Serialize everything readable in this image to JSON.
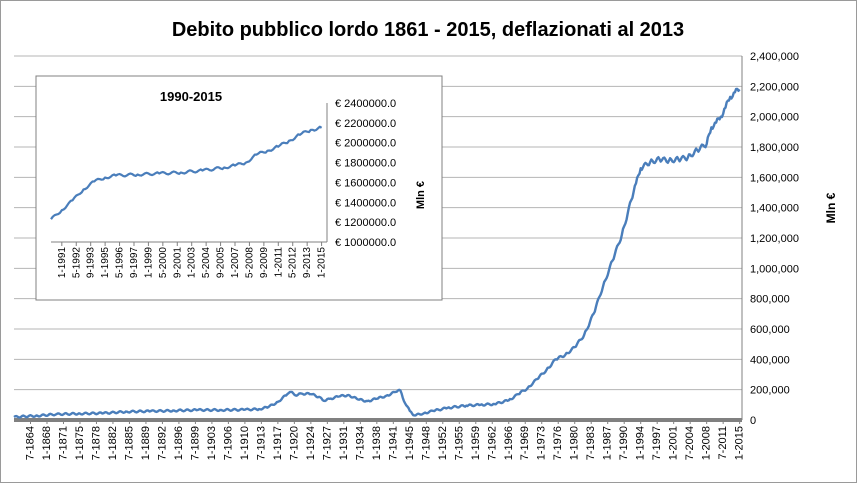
{
  "chart_data": [
    {
      "type": "line",
      "title": "Debito pubblico lordo 1861 - 2015, deflazionati al 2013",
      "xlabel": "",
      "ylabel": "Mln €",
      "y_axis_position": "right",
      "ylim": [
        0,
        2400000
      ],
      "y_ticks": [
        "0",
        "200,000",
        "400,000",
        "600,000",
        "800,000",
        "1,000,000",
        "1,200,000",
        "1,400,000",
        "1,600,000",
        "1,800,000",
        "2,000,000",
        "2,200,000",
        "2,400,000"
      ],
      "x_ticks": [
        "7-1864",
        "1-1868",
        "7-1871",
        "1-1875",
        "7-1878",
        "1-1882",
        "7-1885",
        "1-1889",
        "7-1892",
        "1-1896",
        "7-1899",
        "1-1903",
        "7-1906",
        "1-1910",
        "7-1913",
        "1-1917",
        "7-1920",
        "1-1924",
        "7-1927",
        "1-1931",
        "7-1934",
        "1-1938",
        "7-1941",
        "1-1945",
        "7-1948",
        "1-1952",
        "7-1955",
        "1-1959",
        "7-1962",
        "1-1966",
        "7-1969",
        "1-1973",
        "7-1976",
        "1-1980",
        "7-1983",
        "1-1987",
        "7-1990",
        "1-1994",
        "7-1997",
        "1-2001",
        "7-2004",
        "1-2008",
        "7-2011",
        "1-2015"
      ],
      "xlim": [
        1861,
        2015.5
      ],
      "grid": true,
      "series": [
        {
          "color": "#4a7ebb",
          "points": [
            [
              1861,
              20000
            ],
            [
              1866,
              28000
            ],
            [
              1870,
              38000
            ],
            [
              1875,
              42000
            ],
            [
              1880,
              45000
            ],
            [
              1885,
              55000
            ],
            [
              1890,
              58000
            ],
            [
              1895,
              62000
            ],
            [
              1900,
              66000
            ],
            [
              1905,
              66000
            ],
            [
              1910,
              68000
            ],
            [
              1913,
              72000
            ],
            [
              1915,
              85000
            ],
            [
              1917,
              120000
            ],
            [
              1919,
              170000
            ],
            [
              1920,
              185000
            ],
            [
              1921,
              160000
            ],
            [
              1922,
              175000
            ],
            [
              1924,
              170000
            ],
            [
              1926,
              150000
            ],
            [
              1927,
              125000
            ],
            [
              1928,
              140000
            ],
            [
              1930,
              155000
            ],
            [
              1932,
              165000
            ],
            [
              1934,
              135000
            ],
            [
              1936,
              125000
            ],
            [
              1938,
              140000
            ],
            [
              1940,
              160000
            ],
            [
              1942,
              185000
            ],
            [
              1943,
              195000
            ],
            [
              1944,
              110000
            ],
            [
              1945,
              60000
            ],
            [
              1946,
              30000
            ],
            [
              1948,
              45000
            ],
            [
              1950,
              60000
            ],
            [
              1953,
              80000
            ],
            [
              1957,
              95000
            ],
            [
              1960,
              100000
            ],
            [
              1963,
              105000
            ],
            [
              1966,
              130000
            ],
            [
              1968,
              170000
            ],
            [
              1970,
              210000
            ],
            [
              1972,
              270000
            ],
            [
              1974,
              330000
            ],
            [
              1976,
              400000
            ],
            [
              1978,
              430000
            ],
            [
              1980,
              480000
            ],
            [
              1982,
              560000
            ],
            [
              1984,
              700000
            ],
            [
              1986,
              880000
            ],
            [
              1988,
              1050000
            ],
            [
              1990,
              1220000
            ],
            [
              1992,
              1450000
            ],
            [
              1993,
              1560000
            ],
            [
              1994,
              1660000
            ],
            [
              1996,
              1700000
            ],
            [
              1998,
              1720000
            ],
            [
              2000,
              1710000
            ],
            [
              2002,
              1720000
            ],
            [
              2004,
              1730000
            ],
            [
              2006,
              1780000
            ],
            [
              2008,
              1820000
            ],
            [
              2009,
              1930000
            ],
            [
              2010,
              1960000
            ],
            [
              2011,
              2000000
            ],
            [
              2012,
              2060000
            ],
            [
              2013,
              2130000
            ],
            [
              2014,
              2160000
            ],
            [
              2015,
              2180000
            ]
          ]
        }
      ]
    },
    {
      "type": "line",
      "title": "1990-2015",
      "xlabel": "",
      "ylabel": "Mln €",
      "y_axis_position": "right",
      "ylim": [
        1000000,
        2400000
      ],
      "y_ticks": [
        "€ 1000000.0",
        "€ 1200000.0",
        "€ 1400000.0",
        "€ 1600000.0",
        "€ 1800000.0",
        "€ 2000000.0",
        "€ 2200000.0",
        "€ 2400000.0"
      ],
      "x_ticks": [
        "1-1991",
        "5-1992",
        "9-1993",
        "1-1995",
        "5-1996",
        "9-1997",
        "1-1999",
        "5-2000",
        "9-2001",
        "1-2003",
        "5-2004",
        "9-2005",
        "1-2007",
        "5-2008",
        "9-2009",
        "1-2011",
        "5-2012",
        "9-2013",
        "1-2015"
      ],
      "xlim": [
        1990,
        2015.5
      ],
      "grid": false,
      "series": [
        {
          "color": "#4a7ebb",
          "points": [
            [
              1990,
              1230000
            ],
            [
              1991,
              1320000
            ],
            [
              1992,
              1420000
            ],
            [
              1993,
              1530000
            ],
            [
              1994,
              1610000
            ],
            [
              1995,
              1650000
            ],
            [
              1996,
              1670000
            ],
            [
              1998,
              1680000
            ],
            [
              2000,
              1690000
            ],
            [
              2002,
              1700000
            ],
            [
              2004,
              1720000
            ],
            [
              2006,
              1750000
            ],
            [
              2007,
              1770000
            ],
            [
              2008,
              1800000
            ],
            [
              2009,
              1880000
            ],
            [
              2010,
              1920000
            ],
            [
              2011,
              1960000
            ],
            [
              2012,
              2020000
            ],
            [
              2013,
              2080000
            ],
            [
              2014,
              2130000
            ],
            [
              2015,
              2150000
            ]
          ]
        }
      ]
    }
  ]
}
